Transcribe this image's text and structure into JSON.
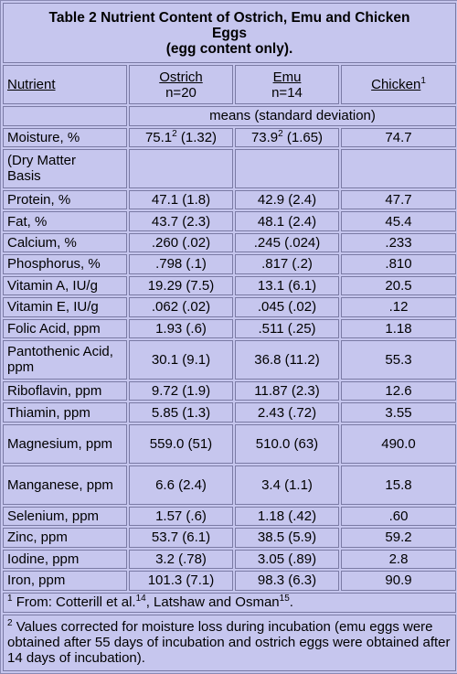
{
  "title": {
    "line1": "Table 2 Nutrient Content of Ostrich, Emu and Chicken",
    "line2": "Eggs",
    "line3": "(egg content only)."
  },
  "header": {
    "nutrient": "Nutrient",
    "ostrich": "Ostrich",
    "ostrich_n": "n=20",
    "emu": "Emu",
    "emu_n": "n=14",
    "chicken": "Chicken",
    "chicken_sup": "1"
  },
  "means_label": "means (standard deviation)",
  "moisture": {
    "label": "Moisture, %",
    "ostrich_main": "75.1",
    "ostrich_sup": "2",
    "ostrich_sd": " (1.32)",
    "emu_main": "73.9",
    "emu_sup": "2",
    "emu_sd": " (1.65)",
    "chicken": "74.7"
  },
  "dry_matter": {
    "line1": "(Dry Matter",
    "line2": "Basis"
  },
  "rows": [
    {
      "label": "Protein, %",
      "ostrich": "47.1 (1.8)",
      "emu": "42.9 (2.4)",
      "chicken": "47.7"
    },
    {
      "label": "Fat, %",
      "ostrich": "43.7 (2.3)",
      "emu": "48.1 (2.4)",
      "chicken": "45.4"
    },
    {
      "label": "Calcium, %",
      "ostrich": ".260 (.02)",
      "emu": ".245 (.024)",
      "chicken": ".233"
    },
    {
      "label": "Phosphorus, %",
      "ostrich": ".798 (.1)",
      "emu": ".817 (.2)",
      "chicken": ".810"
    },
    {
      "label": "Vitamin A, IU/g",
      "ostrich": "19.29 (7.5)",
      "emu": "13.1 (6.1)",
      "chicken": "20.5"
    },
    {
      "label": "Vitamin E, IU/g",
      "ostrich": ".062 (.02)",
      "emu": ".045 (.02)",
      "chicken": ".12"
    },
    {
      "label": "Folic Acid, ppm",
      "ostrich": "1.93 (.6)",
      "emu": ".511 (.25)",
      "chicken": "1.18"
    },
    {
      "label": "Pantothenic Acid, ppm",
      "ostrich": "30.1 (9.1)",
      "emu": "36.8 (11.2)",
      "chicken": "55.3"
    },
    {
      "label": "Riboflavin, ppm",
      "ostrich": "9.72 (1.9)",
      "emu": "11.87 (2.3)",
      "chicken": "12.6"
    },
    {
      "label": "Thiamin, ppm",
      "ostrich": "5.85 (1.3)",
      "emu": "2.43 (.72)",
      "chicken": "3.55"
    },
    {
      "label": "Magnesium, ppm",
      "ostrich": "559.0 (51)",
      "emu": "510.0 (63)",
      "chicken": "490.0"
    },
    {
      "label": "Manganese, ppm",
      "ostrich": "6.6 (2.4)",
      "emu": "3.4 (1.1)",
      "chicken": "15.8"
    },
    {
      "label": "Selenium, ppm",
      "ostrich": "1.57 (.6)",
      "emu": "1.18 (.42)",
      "chicken": ".60"
    },
    {
      "label": "Zinc, ppm",
      "ostrich": "53.7 (6.1)",
      "emu": "38.5 (5.9)",
      "chicken": "59.2"
    },
    {
      "label": "Iodine, ppm",
      "ostrich": "3.2 (.78)",
      "emu": "3.05 (.89)",
      "chicken": "2.8"
    },
    {
      "label": "Iron, ppm",
      "ostrich": "101.3 (7.1)",
      "emu": "98.3 (6.3)",
      "chicken": "90.9"
    }
  ],
  "footnote1": {
    "sup": "1",
    "text_a": " From: Cotterill et al.",
    "ref_a": "14",
    "text_b": ", Latshaw and Osman",
    "ref_b": "15",
    "text_c": "."
  },
  "footnote2": {
    "sup": "2",
    "text": " Values corrected for moisture loss during incubation (emu eggs were obtained after 55 days of incubation and ostrich eggs were obtained after 14 days of incubation)."
  }
}
